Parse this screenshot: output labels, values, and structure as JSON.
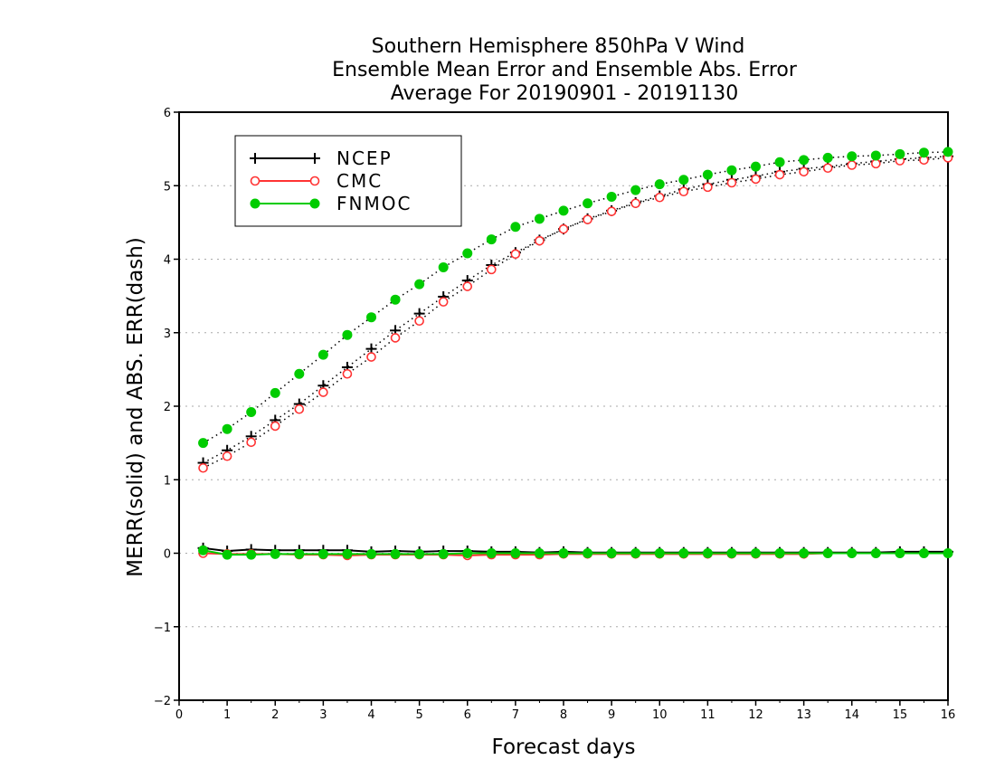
{
  "chart_data": {
    "type": "line",
    "title_lines": [
      "Southern Hemisphere 850hPa V Wind",
      "Ensemble Mean Error and Ensemble Abs. Error",
      "Average For 20190901 - 20191130"
    ],
    "xlabel": "Forecast days",
    "ylabel": "MERR(solid) and ABS. ERR(dash)",
    "xlim": [
      0,
      16
    ],
    "ylim": [
      -2,
      6
    ],
    "xticks": [
      "0",
      "1",
      "2",
      "3",
      "4",
      "5",
      "6",
      "7",
      "8",
      "9",
      "10",
      "11",
      "12",
      "13",
      "14",
      "15",
      "16"
    ],
    "yticks": [
      "-2",
      "-1",
      "0",
      "1",
      "2",
      "3",
      "4",
      "5",
      "6"
    ],
    "grid": true,
    "legend_position": "top-left",
    "x": [
      0.5,
      1,
      1.5,
      2,
      2.5,
      3,
      3.5,
      4,
      4.5,
      5,
      5.5,
      6,
      6.5,
      7,
      7.5,
      8,
      8.5,
      9,
      9.5,
      10,
      10.5,
      11,
      11.5,
      12,
      12.5,
      13,
      13.5,
      14,
      14.5,
      15,
      15.5,
      16
    ],
    "series": [
      {
        "name": "NCEP",
        "color": "#000000",
        "marker": "plus",
        "abs_err": [
          1.23,
          1.4,
          1.59,
          1.81,
          2.03,
          2.28,
          2.53,
          2.78,
          3.03,
          3.26,
          3.49,
          3.71,
          3.92,
          4.09,
          4.26,
          4.41,
          4.55,
          4.66,
          4.77,
          4.86,
          4.95,
          5.02,
          5.08,
          5.13,
          5.19,
          5.23,
          5.26,
          5.3,
          5.33,
          5.36,
          5.38,
          5.4
        ],
        "mean_err": [
          0.07,
          0.03,
          0.05,
          0.04,
          0.04,
          0.04,
          0.04,
          0.02,
          0.03,
          0.02,
          0.03,
          0.03,
          0.02,
          0.02,
          0.01,
          0.02,
          0.01,
          0.01,
          0.01,
          0.01,
          0.01,
          0.01,
          0.01,
          0.01,
          0.01,
          0.01,
          0.01,
          0.01,
          0.01,
          0.02,
          0.02,
          0.02
        ]
      },
      {
        "name": "CMC",
        "color": "#ff3333",
        "marker": "open-circle",
        "abs_err": [
          1.16,
          1.32,
          1.51,
          1.73,
          1.96,
          2.19,
          2.44,
          2.67,
          2.93,
          3.16,
          3.42,
          3.63,
          3.86,
          4.07,
          4.25,
          4.41,
          4.54,
          4.65,
          4.76,
          4.84,
          4.92,
          4.98,
          5.04,
          5.09,
          5.15,
          5.19,
          5.24,
          5.28,
          5.3,
          5.34,
          5.35,
          5.38
        ],
        "mean_err": [
          0.0,
          -0.01,
          -0.01,
          -0.01,
          -0.02,
          -0.02,
          -0.03,
          -0.02,
          -0.02,
          -0.02,
          -0.02,
          -0.03,
          -0.02,
          -0.02,
          -0.02,
          -0.01,
          -0.01,
          -0.01,
          -0.01,
          -0.01,
          -0.01,
          -0.01,
          -0.01,
          -0.01,
          -0.01,
          -0.01,
          0.0,
          0.0,
          0.0,
          0.0,
          0.0,
          0.0
        ]
      },
      {
        "name": "FNMOC",
        "color": "#00cc00",
        "marker": "filled-circle",
        "abs_err": [
          1.5,
          1.69,
          1.92,
          2.18,
          2.44,
          2.7,
          2.97,
          3.21,
          3.45,
          3.66,
          3.89,
          4.08,
          4.27,
          4.44,
          4.55,
          4.66,
          4.76,
          4.85,
          4.94,
          5.02,
          5.08,
          5.15,
          5.21,
          5.26,
          5.32,
          5.35,
          5.38,
          5.4,
          5.41,
          5.43,
          5.45,
          5.46
        ],
        "mean_err": [
          0.04,
          -0.02,
          -0.02,
          -0.01,
          -0.01,
          -0.01,
          -0.01,
          -0.01,
          -0.01,
          -0.01,
          -0.01,
          0.0,
          0.0,
          0.0,
          0.0,
          0.0,
          0.0,
          0.0,
          0.0,
          0.0,
          0.0,
          0.0,
          0.0,
          0.0,
          0.0,
          0.0,
          0.0,
          0.0,
          0.0,
          0.0,
          0.0,
          0.0
        ]
      }
    ]
  }
}
